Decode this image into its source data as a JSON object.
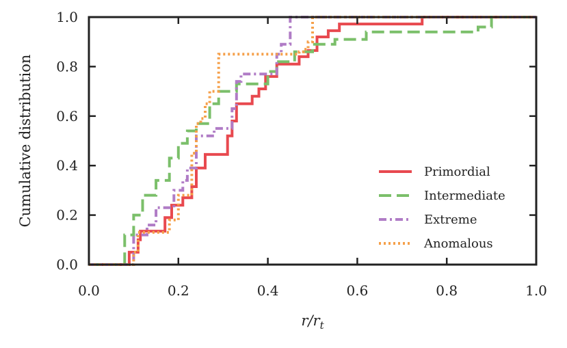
{
  "chart_data": {
    "type": "line",
    "title": "",
    "xlabel": "r/r",
    "xlabel_sub": "t",
    "ylabel": "Cumulative distribution",
    "xlim": [
      0.0,
      1.0
    ],
    "ylim": [
      0.0,
      1.0
    ],
    "xticks": [
      "0.0",
      "0.2",
      "0.4",
      "0.6",
      "0.8",
      "1.0"
    ],
    "yticks": [
      "0.0",
      "0.2",
      "0.4",
      "0.6",
      "0.8",
      "1.0"
    ],
    "xtick_values": [
      0.0,
      0.2,
      0.4,
      0.6,
      0.8,
      1.0
    ],
    "ytick_values": [
      0.0,
      0.2,
      0.4,
      0.6,
      0.8,
      1.0
    ],
    "grid": false,
    "legend_position": "lower-right",
    "series": [
      {
        "name": "Primordial",
        "color": "#e8494f",
        "style": "solid",
        "steps": [
          [
            0.0,
            0.0
          ],
          [
            0.09,
            0.0
          ],
          [
            0.09,
            0.05
          ],
          [
            0.11,
            0.05
          ],
          [
            0.11,
            0.1
          ],
          [
            0.115,
            0.1
          ],
          [
            0.115,
            0.135
          ],
          [
            0.17,
            0.135
          ],
          [
            0.17,
            0.19
          ],
          [
            0.185,
            0.19
          ],
          [
            0.185,
            0.24
          ],
          [
            0.21,
            0.24
          ],
          [
            0.21,
            0.27
          ],
          [
            0.23,
            0.27
          ],
          [
            0.23,
            0.315
          ],
          [
            0.24,
            0.315
          ],
          [
            0.24,
            0.39
          ],
          [
            0.26,
            0.39
          ],
          [
            0.26,
            0.445
          ],
          [
            0.31,
            0.445
          ],
          [
            0.31,
            0.52
          ],
          [
            0.32,
            0.52
          ],
          [
            0.32,
            0.58
          ],
          [
            0.33,
            0.58
          ],
          [
            0.33,
            0.65
          ],
          [
            0.365,
            0.65
          ],
          [
            0.365,
            0.68
          ],
          [
            0.38,
            0.68
          ],
          [
            0.38,
            0.71
          ],
          [
            0.395,
            0.71
          ],
          [
            0.395,
            0.76
          ],
          [
            0.42,
            0.76
          ],
          [
            0.42,
            0.81
          ],
          [
            0.47,
            0.81
          ],
          [
            0.47,
            0.84
          ],
          [
            0.49,
            0.84
          ],
          [
            0.49,
            0.865
          ],
          [
            0.51,
            0.865
          ],
          [
            0.51,
            0.92
          ],
          [
            0.535,
            0.92
          ],
          [
            0.535,
            0.945
          ],
          [
            0.56,
            0.945
          ],
          [
            0.56,
            0.972
          ],
          [
            0.745,
            0.972
          ],
          [
            0.745,
            1.0
          ],
          [
            1.0,
            1.0
          ]
        ]
      },
      {
        "name": "Intermediate",
        "color": "#7bbf6a",
        "style": "dashed",
        "steps": [
          [
            0.0,
            0.0
          ],
          [
            0.08,
            0.0
          ],
          [
            0.08,
            0.12
          ],
          [
            0.1,
            0.12
          ],
          [
            0.1,
            0.2
          ],
          [
            0.12,
            0.2
          ],
          [
            0.12,
            0.28
          ],
          [
            0.15,
            0.28
          ],
          [
            0.15,
            0.34
          ],
          [
            0.18,
            0.34
          ],
          [
            0.18,
            0.43
          ],
          [
            0.2,
            0.43
          ],
          [
            0.2,
            0.49
          ],
          [
            0.22,
            0.49
          ],
          [
            0.22,
            0.54
          ],
          [
            0.24,
            0.54
          ],
          [
            0.24,
            0.57
          ],
          [
            0.27,
            0.57
          ],
          [
            0.27,
            0.65
          ],
          [
            0.29,
            0.65
          ],
          [
            0.29,
            0.7
          ],
          [
            0.33,
            0.7
          ],
          [
            0.33,
            0.73
          ],
          [
            0.4,
            0.73
          ],
          [
            0.4,
            0.78
          ],
          [
            0.42,
            0.78
          ],
          [
            0.42,
            0.82
          ],
          [
            0.46,
            0.82
          ],
          [
            0.46,
            0.86
          ],
          [
            0.5,
            0.86
          ],
          [
            0.5,
            0.89
          ],
          [
            0.55,
            0.89
          ],
          [
            0.55,
            0.91
          ],
          [
            0.62,
            0.91
          ],
          [
            0.62,
            0.94
          ],
          [
            0.87,
            0.94
          ],
          [
            0.87,
            0.96
          ],
          [
            0.9,
            0.96
          ],
          [
            0.9,
            1.0
          ],
          [
            1.0,
            1.0
          ]
        ]
      },
      {
        "name": "Extreme",
        "color": "#b07cc6",
        "style": "dashdot",
        "steps": [
          [
            0.0,
            0.0
          ],
          [
            0.1,
            0.0
          ],
          [
            0.1,
            0.12
          ],
          [
            0.13,
            0.12
          ],
          [
            0.13,
            0.16
          ],
          [
            0.15,
            0.16
          ],
          [
            0.15,
            0.23
          ],
          [
            0.19,
            0.23
          ],
          [
            0.19,
            0.3
          ],
          [
            0.21,
            0.3
          ],
          [
            0.21,
            0.34
          ],
          [
            0.22,
            0.34
          ],
          [
            0.22,
            0.39
          ],
          [
            0.24,
            0.39
          ],
          [
            0.24,
            0.52
          ],
          [
            0.28,
            0.52
          ],
          [
            0.28,
            0.55
          ],
          [
            0.32,
            0.55
          ],
          [
            0.32,
            0.63
          ],
          [
            0.33,
            0.63
          ],
          [
            0.33,
            0.74
          ],
          [
            0.34,
            0.74
          ],
          [
            0.34,
            0.77
          ],
          [
            0.42,
            0.77
          ],
          [
            0.42,
            0.85
          ],
          [
            0.43,
            0.85
          ],
          [
            0.43,
            0.89
          ],
          [
            0.45,
            0.89
          ],
          [
            0.45,
            1.0
          ],
          [
            1.0,
            1.0
          ]
        ]
      },
      {
        "name": "Anomalous",
        "color": "#f5a04a",
        "style": "dotted",
        "steps": [
          [
            0.0,
            0.0
          ],
          [
            0.1,
            0.0
          ],
          [
            0.1,
            0.05
          ],
          [
            0.11,
            0.05
          ],
          [
            0.11,
            0.13
          ],
          [
            0.18,
            0.13
          ],
          [
            0.18,
            0.18
          ],
          [
            0.2,
            0.18
          ],
          [
            0.2,
            0.28
          ],
          [
            0.23,
            0.28
          ],
          [
            0.23,
            0.45
          ],
          [
            0.24,
            0.45
          ],
          [
            0.24,
            0.57
          ],
          [
            0.25,
            0.57
          ],
          [
            0.25,
            0.59
          ],
          [
            0.26,
            0.59
          ],
          [
            0.26,
            0.65
          ],
          [
            0.27,
            0.65
          ],
          [
            0.27,
            0.7
          ],
          [
            0.29,
            0.7
          ],
          [
            0.29,
            0.85
          ],
          [
            0.47,
            0.85
          ],
          [
            0.47,
            0.86
          ],
          [
            0.48,
            0.86
          ],
          [
            0.48,
            0.87
          ],
          [
            0.49,
            0.87
          ],
          [
            0.49,
            0.9
          ],
          [
            0.5,
            0.9
          ],
          [
            0.5,
            1.0
          ],
          [
            1.0,
            1.0
          ]
        ]
      }
    ]
  }
}
